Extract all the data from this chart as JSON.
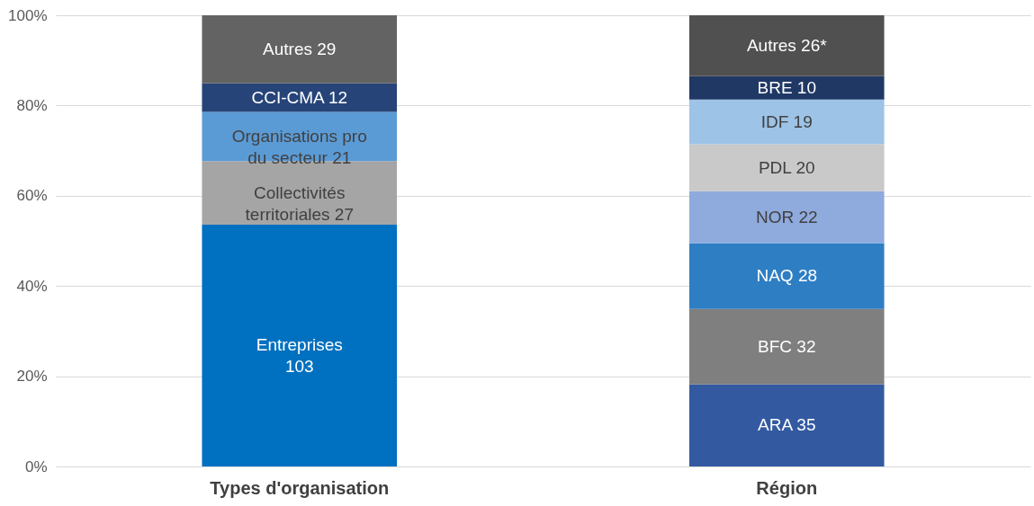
{
  "chart_data": {
    "type": "bar",
    "stacked": true,
    "categories": [
      "Types d'organisation",
      "Région"
    ],
    "ylim": [
      0,
      100
    ],
    "yticks": [
      {
        "value": 0,
        "label": "0%"
      },
      {
        "value": 20,
        "label": "20%"
      },
      {
        "value": 40,
        "label": "40%"
      },
      {
        "value": 60,
        "label": "60%"
      },
      {
        "value": 80,
        "label": "80%"
      },
      {
        "value": 100,
        "label": "100%"
      }
    ],
    "grid": "y",
    "series": [
      {
        "color": "#0070c0",
        "values": [
          53.6,
          null
        ],
        "value_labels": [
          "Entreprises\n103",
          null
        ]
      },
      {
        "color": "#a5a5a5",
        "values": [
          14.1,
          null
        ],
        "value_labels": [
          "Collectivités\nterritoriales 27",
          null
        ]
      },
      {
        "color": "#5b9bd5",
        "values": [
          10.9,
          null
        ],
        "value_labels": [
          "Organisations pro\ndu secteur 21",
          null
        ]
      },
      {
        "color": "#264478",
        "values": [
          6.3,
          null
        ],
        "value_labels": [
          "CCI-CMA 12",
          null
        ]
      },
      {
        "color": "#636363",
        "values": [
          15.1,
          null
        ],
        "value_labels": [
          "Autres 29",
          null
        ]
      },
      {
        "color": "#335aa1",
        "values": [
          null,
          18.2
        ],
        "value_labels": [
          null,
          "ARA 35"
        ]
      },
      {
        "color": "#7f7f7f",
        "values": [
          null,
          16.7
        ],
        "value_labels": [
          null,
          "BFC 32"
        ]
      },
      {
        "color": "#2e7ec4",
        "values": [
          null,
          14.6
        ],
        "value_labels": [
          null,
          "NAQ 28"
        ]
      },
      {
        "color": "#8faadc",
        "values": [
          null,
          11.5
        ],
        "value_labels": [
          null,
          "NOR 22"
        ]
      },
      {
        "color": "#c9c9c9",
        "values": [
          null,
          10.4
        ],
        "value_labels": [
          null,
          "PDL 20"
        ]
      },
      {
        "color": "#9dc3e6",
        "values": [
          null,
          9.9
        ],
        "value_labels": [
          null,
          "IDF 19"
        ]
      },
      {
        "color": "#203864",
        "values": [
          null,
          5.2
        ],
        "value_labels": [
          null,
          "BRE 10"
        ]
      },
      {
        "color": "#505050",
        "values": [
          null,
          13.5
        ],
        "value_labels": [
          null,
          "Autres 26*"
        ]
      }
    ]
  }
}
